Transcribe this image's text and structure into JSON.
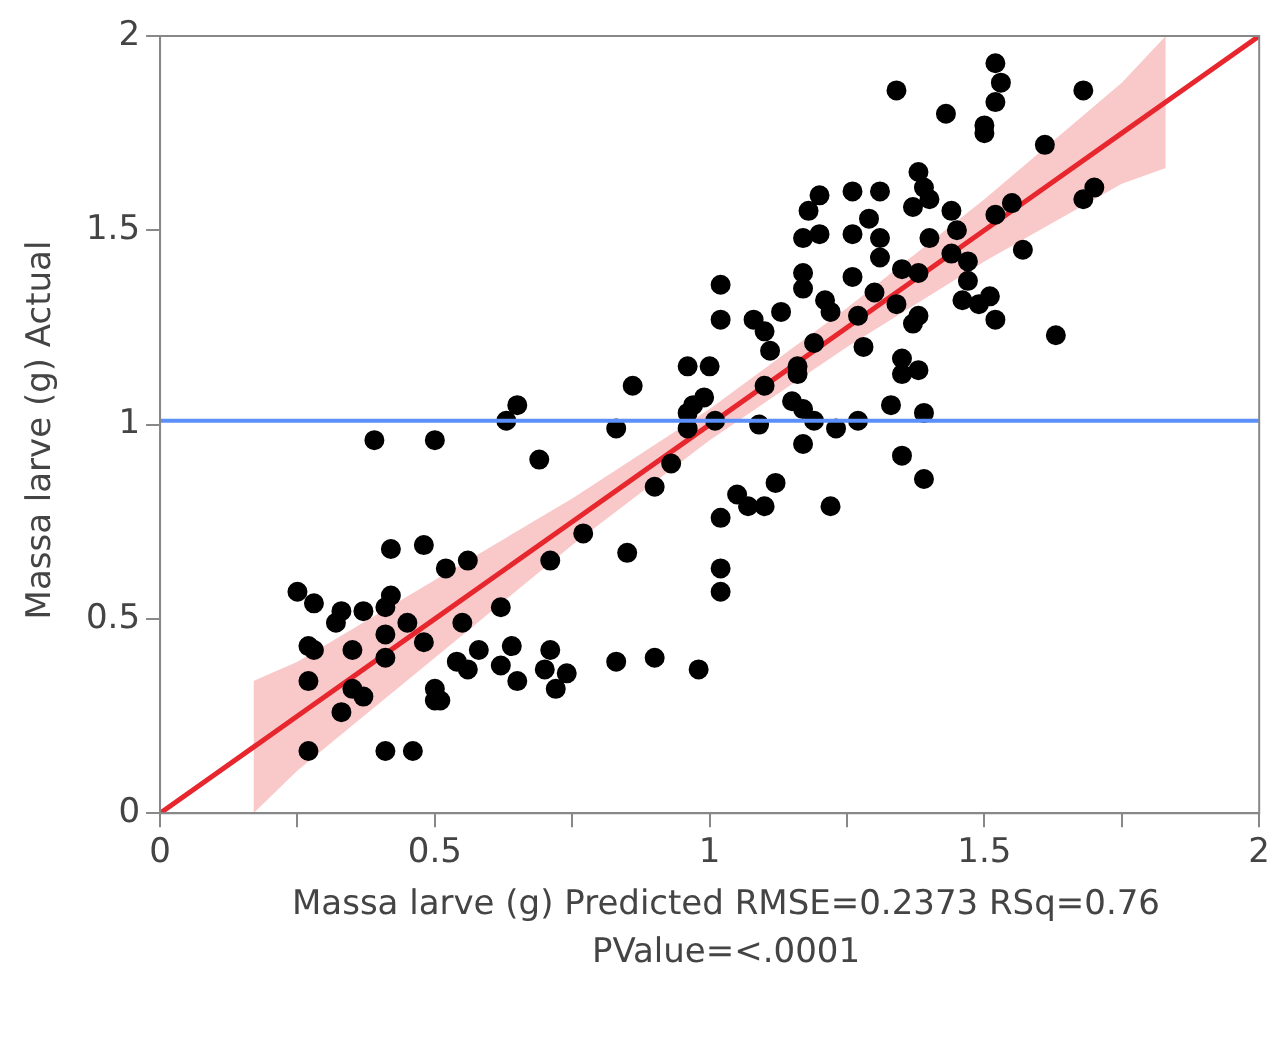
{
  "chart_data": {
    "type": "scatter",
    "xlabel": "Massa larve (g) Predicted RMSE=0.2373 RSq=0.76 PValue=<.0001",
    "ylabel": "Massa larve (g) Actual",
    "xlim": [
      0,
      2
    ],
    "ylim": [
      0,
      2
    ],
    "xticks": [
      0,
      {
        "value": 0.25,
        "label": null
      },
      0.5,
      {
        "value": 0.75,
        "label": null
      },
      1,
      {
        "value": 1.25,
        "label": null
      },
      1.5,
      {
        "value": 1.75,
        "label": null
      },
      2
    ],
    "yticks": [
      0,
      0.5,
      1,
      1.5,
      2
    ],
    "grid": false,
    "legend": false,
    "marker": "circle",
    "ref_lines": [
      {
        "axis": "y",
        "value": 1.01,
        "color": "#5b8ff9"
      }
    ],
    "series": [
      {
        "color": "#000000",
        "x": [
          0.96,
          0.86,
          0.65,
          0.63,
          0.39,
          0.5,
          0.83,
          0.96,
          0.96,
          0.69,
          0.93,
          0.9,
          0.77,
          0.85,
          0.71,
          0.42,
          0.48,
          0.52,
          0.56,
          0.25,
          0.28,
          0.42,
          0.41,
          0.33,
          0.37,
          0.32,
          0.45,
          0.41,
          0.62,
          0.55,
          0.48,
          0.27,
          0.28,
          0.35,
          0.41,
          0.58,
          0.64,
          0.71,
          0.54,
          0.56,
          0.62,
          0.7,
          0.74,
          0.65,
          0.72,
          0.83,
          0.9,
          0.98,
          0.27,
          0.35,
          0.37,
          0.5,
          0.5,
          0.51,
          0.33,
          0.27,
          0.41,
          0.46,
          1.2,
          1.26,
          1.31,
          1.31,
          1.4,
          1.02,
          1.17,
          1.17,
          1.26,
          1.3,
          1.21,
          1.22,
          1.35,
          1.38,
          1.34,
          1.13,
          1.27,
          1.38,
          1.37,
          1.02,
          1.08,
          1.1,
          1.11,
          1.19,
          1.28,
          1.0,
          1.16,
          1.16,
          1.35,
          1.35,
          1.38,
          1.1,
          0.97,
          0.99,
          1.15,
          1.17,
          1.19,
          1.01,
          1.09,
          1.23,
          1.27,
          1.33,
          1.39,
          1.17,
          1.35,
          1.39,
          1.12,
          1.05,
          1.07,
          1.1,
          1.02,
          1.22,
          1.02,
          1.02,
          1.52,
          1.53,
          1.52,
          1.68,
          1.43,
          1.5,
          1.5,
          1.61,
          1.38,
          1.39,
          1.4,
          1.37,
          1.44,
          1.52,
          1.55,
          1.68,
          1.7,
          1.45,
          1.57,
          1.44,
          1.47,
          1.47,
          1.46,
          1.51,
          1.49,
          1.52,
          1.63,
          1.34,
          1.2,
          1.26,
          1.31,
          1.18,
          1.29,
          1.17
        ],
        "values": [
          1.15,
          1.1,
          1.05,
          1.01,
          0.96,
          0.96,
          0.99,
          1.03,
          0.99,
          0.91,
          0.9,
          0.84,
          0.72,
          0.67,
          0.65,
          0.68,
          0.69,
          0.63,
          0.65,
          0.57,
          0.54,
          0.56,
          0.53,
          0.52,
          0.52,
          0.49,
          0.49,
          0.46,
          0.53,
          0.49,
          0.44,
          0.43,
          0.42,
          0.42,
          0.4,
          0.42,
          0.43,
          0.42,
          0.39,
          0.37,
          0.38,
          0.37,
          0.36,
          0.34,
          0.32,
          0.39,
          0.4,
          0.37,
          0.34,
          0.32,
          0.3,
          0.32,
          0.29,
          0.29,
          0.26,
          0.16,
          0.16,
          0.16,
          1.49,
          1.49,
          1.48,
          1.43,
          1.48,
          1.36,
          1.39,
          1.35,
          1.38,
          1.34,
          1.32,
          1.29,
          1.4,
          1.39,
          1.31,
          1.29,
          1.28,
          1.28,
          1.26,
          1.27,
          1.27,
          1.24,
          1.19,
          1.21,
          1.2,
          1.15,
          1.15,
          1.13,
          1.17,
          1.13,
          1.14,
          1.1,
          1.05,
          1.07,
          1.06,
          1.04,
          1.01,
          1.01,
          1.0,
          0.99,
          1.01,
          1.05,
          1.03,
          0.95,
          0.92,
          0.86,
          0.85,
          0.82,
          0.79,
          0.79,
          0.76,
          0.79,
          0.63,
          0.57,
          1.93,
          1.88,
          1.83,
          1.86,
          1.8,
          1.77,
          1.75,
          1.72,
          1.65,
          1.61,
          1.58,
          1.56,
          1.55,
          1.54,
          1.57,
          1.58,
          1.61,
          1.5,
          1.45,
          1.44,
          1.42,
          1.37,
          1.32,
          1.33,
          1.31,
          1.27,
          1.23,
          1.86,
          1.59,
          1.6,
          1.6,
          1.55,
          1.53,
          1.48
        ]
      },
      {
        "type": "line",
        "color": "#e8262d",
        "marker": "none",
        "x": [
          0,
          0.17,
          0.25,
          0.5,
          0.75,
          1,
          1.25,
          1.5,
          1.75,
          1.83,
          2
        ],
        "values": [
          0,
          0.17,
          0.25,
          0.5,
          0.75,
          1,
          1.25,
          1.5,
          1.75,
          1.83,
          2
        ],
        "lower": [
          null,
          0,
          0.11,
          0.4,
          0.69,
          0.96,
          1.2,
          1.42,
          1.62,
          1.66,
          null
        ],
        "upper": [
          null,
          0.34,
          0.39,
          0.6,
          0.81,
          1.04,
          1.3,
          1.58,
          1.88,
          2.0,
          null
        ]
      }
    ]
  }
}
